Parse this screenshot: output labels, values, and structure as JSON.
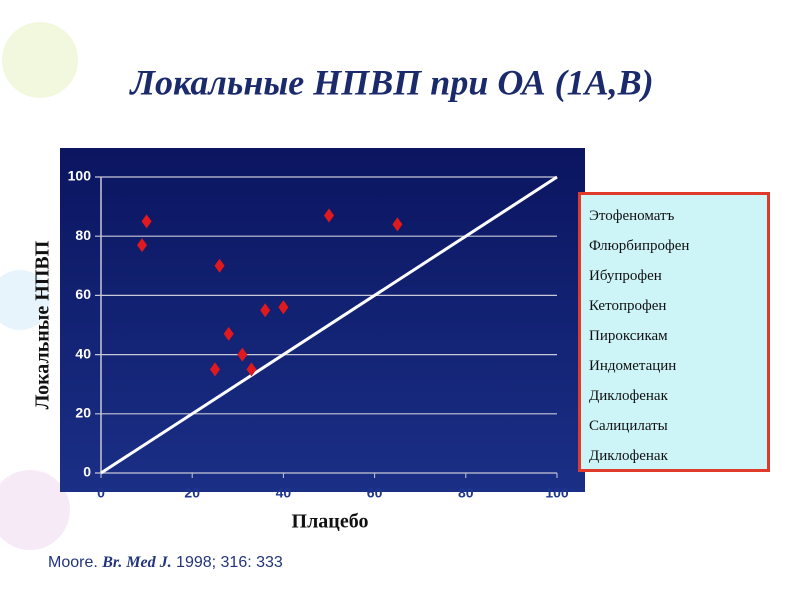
{
  "chart_data": {
    "type": "scatter",
    "title": "Локальные НПВП при ОА (1А,В)",
    "x_label": "Плацебо",
    "y_label": "Локальные НПВП",
    "x": [
      9,
      10,
      25,
      26,
      28,
      31,
      33,
      36,
      40,
      50,
      65
    ],
    "values": [
      77,
      85,
      35,
      70,
      47,
      40,
      35,
      55,
      56,
      87,
      84
    ],
    "color": "#e0191e",
    "xlim": [
      0,
      100
    ],
    "ylim": [
      0,
      100
    ],
    "xticks": [
      0,
      20,
      40,
      60,
      80,
      100
    ],
    "yticks": [
      0,
      20,
      40,
      60,
      80,
      100
    ],
    "grid": true,
    "drug_list": [
      "Этофеноматъ",
      "Флюрбипрофен",
      "Ибупрофен",
      "Кетопрофен",
      "Пироксикам",
      "Индометацин",
      "Диклофенак",
      "Салицилаты",
      "Диклофенак"
    ],
    "citation": {
      "author": "Moore.",
      "journal": "Br. Med J.",
      "ref": "1998; 316: 333"
    }
  }
}
